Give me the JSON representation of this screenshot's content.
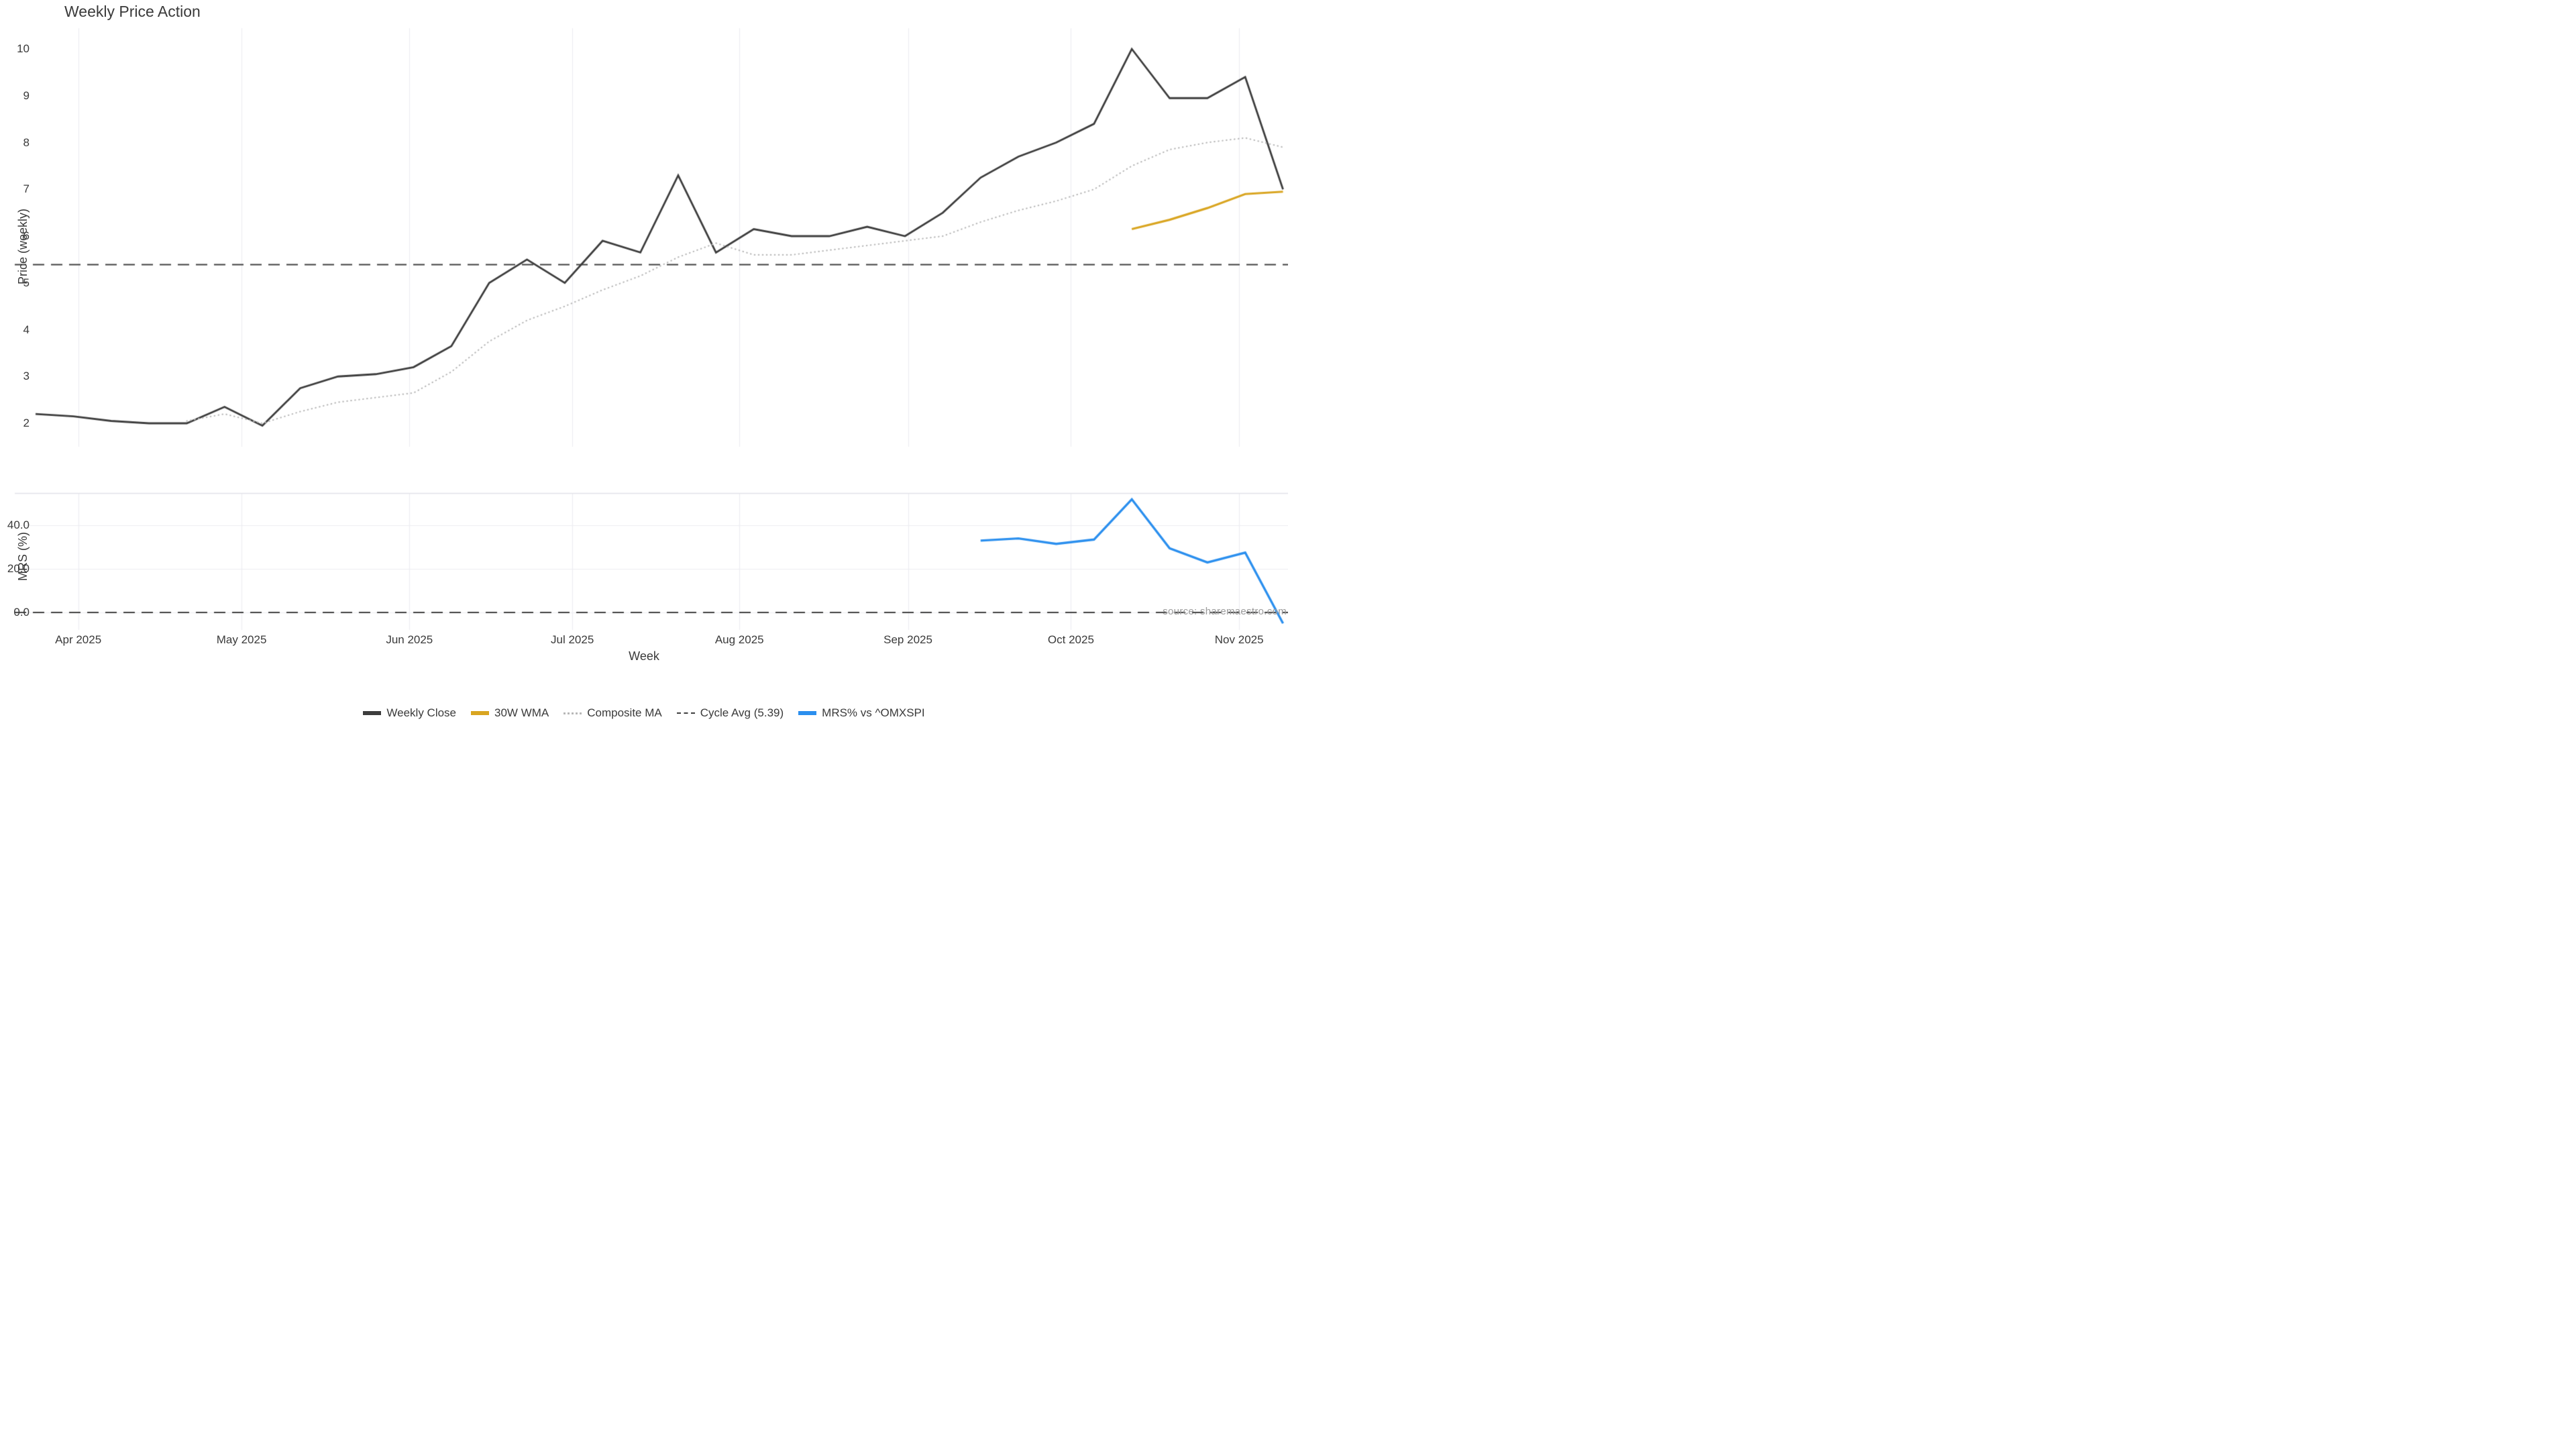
{
  "title": "Weekly Price Action",
  "axes": {
    "x_label": "Week",
    "price_label": "Price (weekly)",
    "mrs_label": "MRS (%)"
  },
  "source_text": "source: sharemaestro.com",
  "colors": {
    "weekly_close": "#3d3d3d",
    "wma_30w": "#d9a521",
    "composite_ma": "#b8b8b8",
    "cycle_avg_dash": "#3f3f3f",
    "mrs_line": "#2b8fee",
    "gridline": "#ececf1",
    "panel_border": "#e2e2e8",
    "tick_text": "#3a3a3a",
    "source_text": "#9b9b9b"
  },
  "legend": [
    {
      "label": "Weekly Close",
      "color": "#3d3d3d",
      "style": "solid"
    },
    {
      "label": "30W WMA",
      "color": "#d9a521",
      "style": "solid"
    },
    {
      "label": "Composite MA",
      "color": "#b8b8b8",
      "style": "dotted"
    },
    {
      "label": "Cycle Avg (5.39)",
      "color": "#3f3f3f",
      "style": "dashed"
    },
    {
      "label": "MRS% vs ^OMXSPI",
      "color": "#2b8fee",
      "style": "solid"
    }
  ],
  "chart_data": {
    "type": "line",
    "x_unit": "weekly samples, late Mar 2025 through mid Nov 2025 (week index 0-33)",
    "x_ticks": [
      {
        "label": "Apr 2025",
        "week": 1.13
      },
      {
        "label": "May 2025",
        "week": 5.45
      },
      {
        "label": "Jun 2025",
        "week": 9.89
      },
      {
        "label": "Jul 2025",
        "week": 14.2
      },
      {
        "label": "Aug 2025",
        "week": 18.62
      },
      {
        "label": "Sep 2025",
        "week": 23.08
      },
      {
        "label": "Oct 2025",
        "week": 27.39
      },
      {
        "label": "Nov 2025",
        "week": 31.84
      }
    ],
    "panels": [
      {
        "id": "price",
        "ylabel": "Price (weekly)",
        "ylim": [
          1.5,
          10.45
        ],
        "yticks": [
          2,
          3,
          4,
          5,
          6,
          7,
          8,
          9,
          10
        ],
        "ytick_labels": [
          "2",
          "3",
          "4",
          "5",
          "6",
          "7",
          "8",
          "9",
          "10"
        ],
        "grid": "vertical months only"
      },
      {
        "id": "mrs",
        "ylabel": "MRS (%)",
        "ylim": [
          -8,
          55
        ],
        "yticks": [
          0,
          20,
          40
        ],
        "ytick_labels": [
          "0.0",
          "20.0",
          "40.0"
        ],
        "grid": "vertical months + horizontal ticks"
      }
    ],
    "series": [
      {
        "name": "Weekly Close",
        "panel": "price",
        "style": "solid",
        "color": "#3d3d3d",
        "width": 2.8,
        "x_start": 0,
        "values": [
          2.2,
          2.15,
          2.05,
          2.0,
          2.0,
          2.35,
          1.95,
          2.75,
          3.0,
          3.05,
          3.2,
          3.65,
          5.0,
          5.5,
          5.0,
          5.9,
          5.65,
          7.3,
          5.65,
          6.15,
          6.0,
          6.0,
          6.2,
          6.0,
          6.5,
          7.25,
          7.7,
          8.0,
          8.4,
          10.0,
          8.95,
          8.95,
          9.4,
          7.0
        ]
      },
      {
        "name": "Composite MA",
        "panel": "price",
        "style": "dotted",
        "color": "#b8b8b8",
        "width": 2.2,
        "x_start": 4,
        "values": [
          2.05,
          2.2,
          2.0,
          2.25,
          2.45,
          2.55,
          2.65,
          3.1,
          3.75,
          4.2,
          4.5,
          4.85,
          5.15,
          5.55,
          5.85,
          5.6,
          5.6,
          5.7,
          5.8,
          5.9,
          6.0,
          6.3,
          6.55,
          6.75,
          7.0,
          7.5,
          7.85,
          8.0,
          8.1,
          7.9
        ]
      },
      {
        "name": "30W WMA",
        "panel": "price",
        "style": "solid",
        "color": "#d9a521",
        "width": 3.2,
        "x_start": 29,
        "values": [
          6.15,
          6.35,
          6.6,
          6.9,
          6.95
        ]
      },
      {
        "name": "Cycle Avg (5.39)",
        "panel": "price",
        "type": "hline",
        "style": "dashed",
        "color": "#3f3f3f",
        "width": 2,
        "value": 5.39
      },
      {
        "name": "MRS% vs ^OMXSPI",
        "panel": "mrs",
        "style": "solid",
        "color": "#2b8fee",
        "width": 3.4,
        "x_start": 25,
        "values": [
          33,
          34,
          31.5,
          33.5,
          52,
          29.5,
          23,
          27.5,
          -5
        ]
      },
      {
        "name": "MRS zero line",
        "panel": "mrs",
        "type": "hline",
        "style": "dashed",
        "color": "#3f3f3f",
        "width": 2,
        "value": 0
      }
    ]
  }
}
